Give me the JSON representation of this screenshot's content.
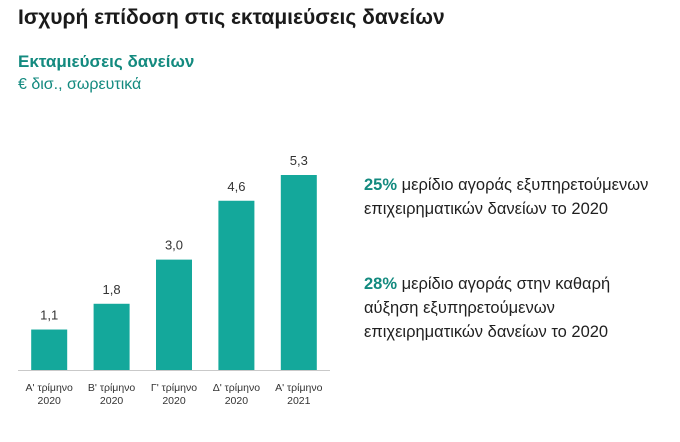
{
  "header": {
    "title": "Ισχυρή επίδοση στις εκταμιεύσεις δανείων"
  },
  "colors": {
    "accent": "#14a89b",
    "title_accent": "#138a7f",
    "axis": "#c9c9c9"
  },
  "chart_data": {
    "type": "bar",
    "title": "Εκταμιεύσεις δανείων",
    "subtitle": "€ δισ., σωρευτικά",
    "categories": [
      [
        "Α' τρίμηνο",
        "2020"
      ],
      [
        "Β' τρίμηνο",
        "2020"
      ],
      [
        "Γ' τρίμηνο",
        "2020"
      ],
      [
        "Δ' τρίμηνο",
        "2020"
      ],
      [
        "Α' τρίμηνο",
        "2021"
      ]
    ],
    "values": [
      1.1,
      1.8,
      3.0,
      4.6,
      5.3
    ],
    "value_labels": [
      "1,1",
      "1,8",
      "3,0",
      "4,6",
      "5,3"
    ],
    "ylim": [
      0,
      5.3
    ],
    "grid": false,
    "legend": "none"
  },
  "highlights": [
    {
      "pct": "25%",
      "text": " μερίδιο αγοράς εξυπηρετούμενων επιχειρηματικών δανείων το 2020"
    },
    {
      "pct": "28%",
      "text": " μερίδιο αγοράς στην καθαρή αύξηση εξυπηρετούμενων επιχειρηματικών δανείων το 2020"
    }
  ]
}
